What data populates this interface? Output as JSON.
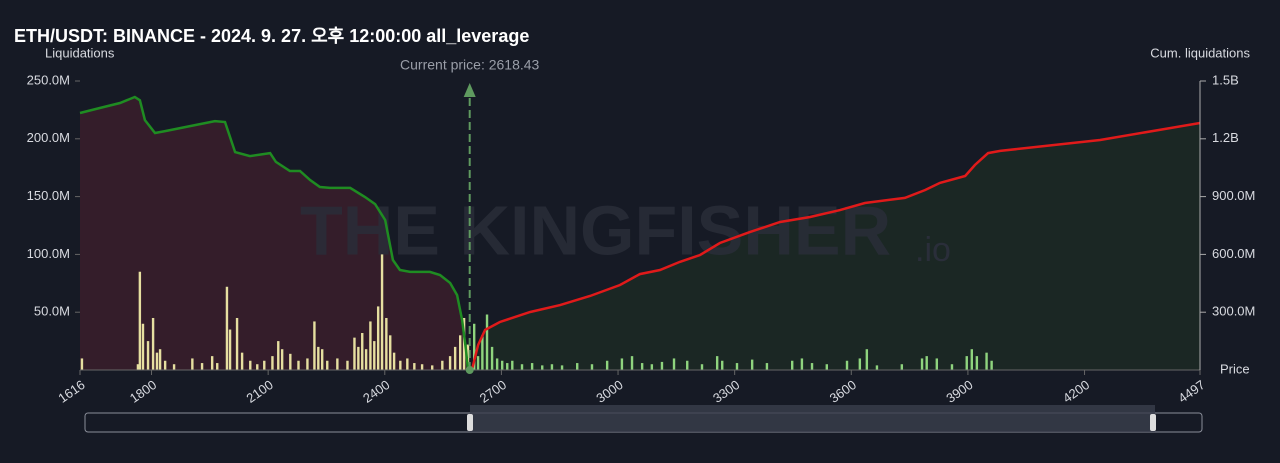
{
  "chart_data": {
    "type": "combo",
    "title": "ETH/USDT: BINANCE - 2024. 9. 27. 오후 12:00:00 all_leverage",
    "y_label": "Liquidations",
    "y2_label": "Cum. liquidations",
    "x_label": "Price",
    "watermark": "THE KINGFISHER",
    "watermark_suffix": ".io",
    "current_price": {
      "text": "Current price: 2618.43",
      "value": 2618.43,
      "color": "#5f9a5f"
    },
    "xlim": [
      1616,
      4497
    ],
    "xticks": [
      1616,
      1800,
      2100,
      2400,
      2700,
      3000,
      3300,
      3600,
      3900,
      4200,
      4497
    ],
    "ylim": [
      0,
      250000000
    ],
    "yticks": [
      {
        "value": 50000000,
        "label": "50.0M"
      },
      {
        "value": 100000000,
        "label": "100.0M"
      },
      {
        "value": 150000000,
        "label": "150.0M"
      },
      {
        "value": 200000000,
        "label": "200.0M"
      },
      {
        "value": 250000000,
        "label": "250.0M"
      }
    ],
    "y2lim": [
      0,
      1500000000
    ],
    "y2ticks": [
      {
        "value": 300000000,
        "label": "300.0M"
      },
      {
        "value": 600000000,
        "label": "600.0M"
      },
      {
        "value": 900000000,
        "label": "900.0M"
      },
      {
        "value": 1200000000,
        "label": "1.2B"
      },
      {
        "value": 1500000000,
        "label": "1.5B"
      }
    ],
    "series": [
      {
        "type": "bar",
        "color": "#e6dfa0",
        "x": [
          1621,
          1765,
          1770,
          1778,
          1791,
          1804,
          1814,
          1822,
          1835,
          1858,
          1905,
          1930,
          1956,
          1969,
          1994,
          2002,
          2020,
          2033,
          2054,
          2072,
          2090,
          2111,
          2126,
          2136,
          2157,
          2178,
          2201,
          2219,
          2229,
          2239,
          2252,
          2278,
          2304,
          2322,
          2332,
          2342,
          2352,
          2363,
          2373,
          2383,
          2393,
          2404,
          2414,
          2424,
          2440,
          2458,
          2476,
          2496,
          2522,
          2548,
          2568,
          2581,
          2594,
          2604,
          2614
        ],
        "values": [
          10000000,
          5000000,
          85000000,
          40000000,
          25000000,
          45000000,
          15000000,
          18000000,
          8000000,
          5000000,
          10000000,
          6000000,
          12000000,
          6000000,
          72000000,
          35000000,
          45000000,
          15000000,
          8000000,
          5000000,
          8000000,
          12000000,
          25000000,
          18000000,
          14000000,
          8000000,
          10000000,
          42000000,
          20000000,
          18000000,
          8000000,
          10000000,
          8000000,
          28000000,
          20000000,
          32000000,
          18000000,
          42000000,
          25000000,
          55000000,
          100000000,
          45000000,
          30000000,
          15000000,
          8000000,
          10000000,
          6000000,
          5000000,
          4000000,
          8000000,
          12000000,
          20000000,
          30000000,
          45000000,
          22000000
        ]
      },
      {
        "type": "bar",
        "color": "#8fd47e",
        "x": [
          2630,
          2640,
          2651,
          2663,
          2676,
          2689,
          2702,
          2715,
          2728,
          2753,
          2779,
          2805,
          2830,
          2856,
          2895,
          2933,
          2972,
          3010,
          3036,
          3062,
          3087,
          3113,
          3144,
          3178,
          3216,
          3255,
          3268,
          3306,
          3345,
          3383,
          3448,
          3473,
          3499,
          3537,
          3589,
          3622,
          3640,
          3666,
          3730,
          3782,
          3794,
          3820,
          3859,
          3897,
          3910,
          3923,
          3948,
          3961
        ],
        "values": [
          40000000,
          12000000,
          30000000,
          48000000,
          20000000,
          10000000,
          8000000,
          6000000,
          8000000,
          5000000,
          6000000,
          4000000,
          5000000,
          4000000,
          6000000,
          5000000,
          8000000,
          10000000,
          12000000,
          6000000,
          5000000,
          7000000,
          10000000,
          8000000,
          5000000,
          12000000,
          8000000,
          6000000,
          9000000,
          6000000,
          8000000,
          10000000,
          6000000,
          5000000,
          8000000,
          10000000,
          18000000,
          4000000,
          5000000,
          10000000,
          12000000,
          10000000,
          5000000,
          12000000,
          18000000,
          12000000,
          15000000,
          8000000
        ]
      },
      {
        "type": "line",
        "axis": "y2",
        "color": "#1f8c22",
        "fill": "#3a1f2b",
        "x": [
          1616,
          1667,
          1719,
          1757,
          1770,
          1783,
          1809,
          1835,
          1899,
          1963,
          1989,
          2015,
          2053,
          2105,
          2120,
          2156,
          2182,
          2208,
          2233,
          2259,
          2311,
          2349,
          2375,
          2401,
          2421,
          2439,
          2465,
          2516,
          2542,
          2568,
          2586,
          2599,
          2609,
          2614
        ],
        "values": [
          1334000000,
          1360000000,
          1386000000,
          1417000000,
          1400000000,
          1297000000,
          1230000000,
          1240000000,
          1266000000,
          1292000000,
          1287000000,
          1131000000,
          1110000000,
          1126000000,
          1080000000,
          1033000000,
          1033000000,
          986000000,
          950000000,
          945000000,
          945000000,
          898000000,
          861000000,
          778000000,
          571000000,
          519000000,
          509000000,
          509000000,
          493000000,
          452000000,
          389000000,
          260000000,
          104000000,
          0
        ]
      },
      {
        "type": "line",
        "axis": "y2",
        "color": "#e01a1a",
        "fill": "#1c2a25",
        "x": [
          2624,
          2640,
          2658,
          2696,
          2774,
          2851,
          2928,
          3005,
          3056,
          3108,
          3159,
          3211,
          3262,
          3339,
          3417,
          3494,
          3571,
          3635,
          3738,
          3790,
          3828,
          3893,
          3918,
          3952,
          3983,
          4240,
          4497
        ],
        "values": [
          0,
          130000000,
          208000000,
          249000000,
          301000000,
          337000000,
          384000000,
          441000000,
          498000000,
          519000000,
          561000000,
          597000000,
          659000000,
          716000000,
          768000000,
          794000000,
          830000000,
          867000000,
          893000000,
          934000000,
          971000000,
          1007000000,
          1064000000,
          1126000000,
          1137000000,
          1194000000,
          1282000000
        ]
      }
    ]
  }
}
